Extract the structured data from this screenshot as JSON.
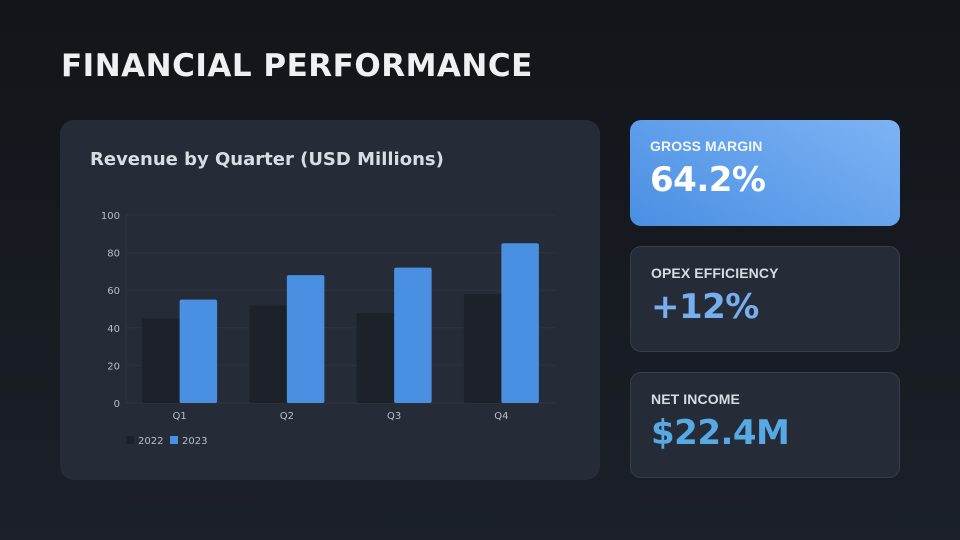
{
  "title": "FINANCIAL PERFORMANCE",
  "kpis": [
    {
      "label": "GROSS MARGIN",
      "value": "64.2%"
    },
    {
      "label": "OPEX EFFICIENCY",
      "value": "+12%"
    },
    {
      "label": "NET INCOME",
      "value": "$22.4M"
    }
  ],
  "colors": {
    "series_2022": "#1d222a",
    "series_2023": "#4a90e2",
    "grid": "#2e3440",
    "tick": "#b8bec8"
  },
  "chart_data": {
    "type": "bar",
    "title": "Revenue by Quarter (USD Millions)",
    "categories": [
      "Q1",
      "Q2",
      "Q3",
      "Q4"
    ],
    "series": [
      {
        "name": "2022",
        "values": [
          45,
          52,
          48,
          58
        ]
      },
      {
        "name": "2023",
        "values": [
          55,
          68,
          72,
          85
        ]
      }
    ],
    "ylim": [
      0,
      100
    ],
    "yticks": [
      0,
      20,
      40,
      60,
      80,
      100
    ],
    "grid": true,
    "legend": "bottom-left"
  }
}
